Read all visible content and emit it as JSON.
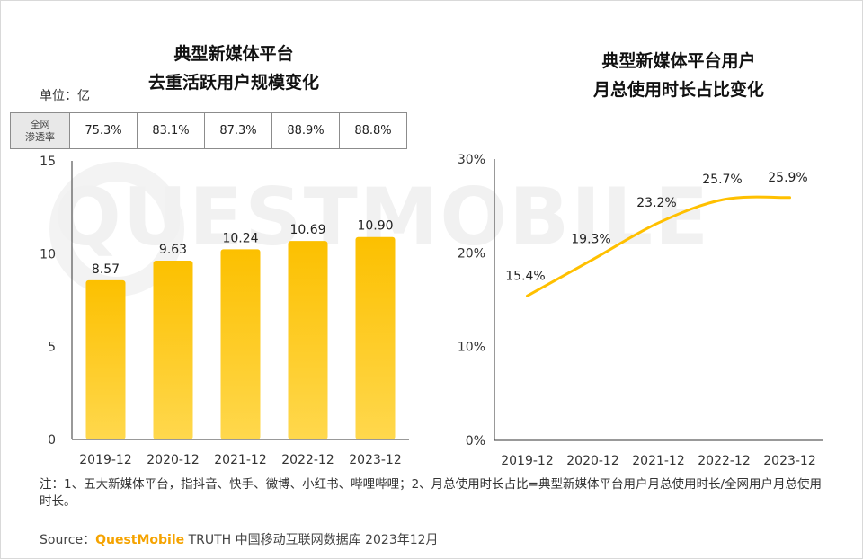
{
  "left_title_line1": "典型新媒体平台",
  "left_title_line2": "去重活跃用户规模变化",
  "right_title_line1": "典型新媒体平台用户",
  "right_title_line2": "月总使用时长占比变化",
  "unit_label": "单位：亿",
  "penetration_header_line1": "全网",
  "penetration_header_line2": "渗透率",
  "penetration_values": [
    "75.3%",
    "83.1%",
    "87.3%",
    "88.9%",
    "88.8%"
  ],
  "watermark": "QUESTMOBILE",
  "note": "注：1、五大新媒体平台，指抖音、快手、微博、小红书、哔哩哔哩；2、月总使用时长占比=典型新媒体平台用户月总使用时长/全网用户月总使用时长。",
  "source_prefix": "Source：",
  "source_brand": "QuestMobile",
  "source_rest": " TRUTH 中国移动互联网数据库 2023年12月",
  "colors": {
    "bar": "#fcc000",
    "bar_light": "#ffd84d",
    "line": "#ffc000",
    "axis": "#333333"
  },
  "chart_data": [
    {
      "type": "bar",
      "title": "典型新媒体平台去重活跃用户规模变化",
      "categories": [
        "2019-12",
        "2020-12",
        "2021-12",
        "2022-12",
        "2023-12"
      ],
      "values": [
        8.57,
        9.63,
        10.24,
        10.69,
        10.9
      ],
      "value_labels": [
        "8.57",
        "9.63",
        "10.24",
        "10.69",
        "10.90"
      ],
      "yticks": [
        "0",
        "5",
        "10",
        "15"
      ],
      "ylim": [
        0,
        15
      ],
      "ylabel": "亿"
    },
    {
      "type": "line",
      "title": "典型新媒体平台用户月总使用时长占比变化",
      "categories": [
        "2019-12",
        "2020-12",
        "2021-12",
        "2022-12",
        "2023-12"
      ],
      "values": [
        15.4,
        19.3,
        23.2,
        25.7,
        25.9
      ],
      "value_labels": [
        "15.4%",
        "19.3%",
        "23.2%",
        "25.7%",
        "25.9%"
      ],
      "yticks": [
        "0%",
        "10%",
        "20%",
        "30%"
      ],
      "ylim": [
        0,
        30
      ]
    }
  ]
}
